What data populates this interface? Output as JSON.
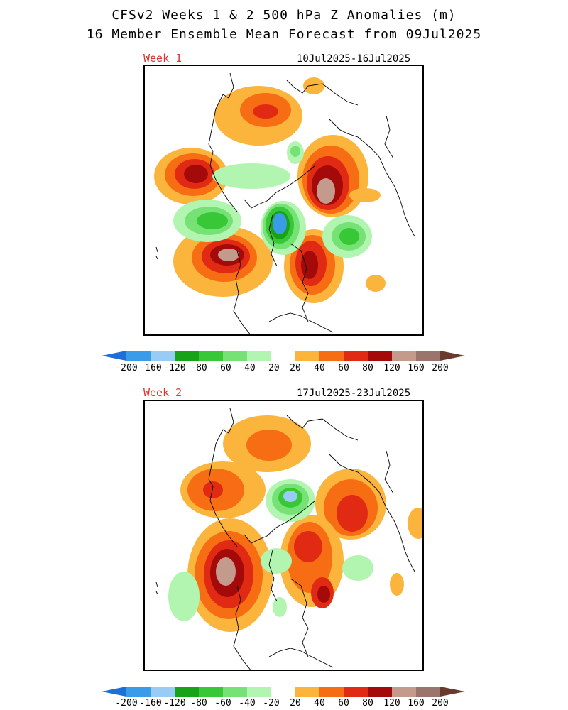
{
  "header": {
    "title_line1": "CFSv2 Weeks 1 & 2 500 hPa Z Anomalies (m)",
    "title_line2": "16 Member Ensemble Mean Forecast from 09Jul2025"
  },
  "panels": [
    {
      "week_label": "Week 1",
      "date_range": "10Jul2025-16Jul2025"
    },
    {
      "week_label": "Week 2",
      "date_range": "17Jul2025-23Jul2025"
    }
  ],
  "colorbar": {
    "labels": [
      "-200",
      "-160",
      "-120",
      "-80",
      "-60",
      "-40",
      "-20",
      "20",
      "40",
      "60",
      "80",
      "120",
      "160",
      "200"
    ],
    "colors": [
      "#1e6ed8",
      "#3a9be8",
      "#98ccf4",
      "#17a217",
      "#37c737",
      "#76e276",
      "#b2f5b0",
      "#ffffff",
      "#fbb43c",
      "#f76d14",
      "#e12a14",
      "#a50a0a",
      "#c49a8c",
      "#9a756b",
      "#6a3a2c"
    ]
  },
  "map_colors": {
    "pos20": "#fbb43c",
    "pos40": "#f76d14",
    "pos60": "#e12a14",
    "pos80": "#a50a0a",
    "pos120": "#c49a8c",
    "pos160": "#9a756b",
    "neg20": "#b2f5b0",
    "neg40": "#76e276",
    "neg60": "#37c737",
    "neg80": "#17a217",
    "neg120": "#98ccf4",
    "neg160": "#3a9be8"
  }
}
